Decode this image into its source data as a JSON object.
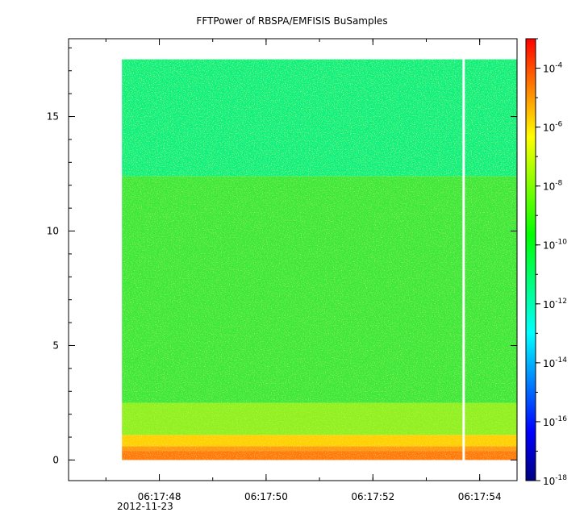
{
  "chart_data": {
    "type": "heatmap",
    "title": "FFTPower of RBSPA/EMFISIS  BuSamples",
    "xlabel": "",
    "ylabel": "",
    "x": {
      "range": [
        "06:17:46.3",
        "06:17:54.7"
      ],
      "ticks": [
        "06:17:48",
        "06:17:50",
        "06:17:52",
        "06:17:54"
      ],
      "date_label": "2012-11-23",
      "data_start": "06:17:47.3",
      "data_end": "06:17:54.7",
      "gap_at": "06:17:53.7"
    },
    "y": {
      "range": [
        -0.9,
        18.4
      ],
      "ticks": [
        "0",
        "5",
        "10",
        "15"
      ],
      "data_range": [
        0,
        17.5
      ]
    },
    "colorbar": {
      "scale": "log",
      "range": [
        "1e-18",
        "1e-3"
      ],
      "tick_base": "10",
      "tick_exponents": [
        "-18",
        "-16",
        "-14",
        "-12",
        "-10",
        "-8",
        "-6",
        "-4"
      ],
      "colormap": [
        "#000080",
        "#0000ff",
        "#0080ff",
        "#00ffff",
        "#00ff80",
        "#00ff00",
        "#80ff00",
        "#ffff00",
        "#ff8000",
        "#ff0000"
      ]
    },
    "bands": [
      {
        "y_from": 0,
        "y_to": 0.4,
        "color": "#ff7a10"
      },
      {
        "y_from": 0.4,
        "y_to": 0.6,
        "color": "#ff9a10"
      },
      {
        "y_from": 0.6,
        "y_to": 1.1,
        "color": "#ffd000"
      },
      {
        "y_from": 1.1,
        "y_to": 2.5,
        "color": "#90f020"
      },
      {
        "y_from": 2.5,
        "y_to": 12.4,
        "color": "#3ce83c"
      },
      {
        "y_from": 12.4,
        "y_to": 17.5,
        "color": "#10f080"
      }
    ],
    "grid": false,
    "legend": "colorbar-right"
  }
}
